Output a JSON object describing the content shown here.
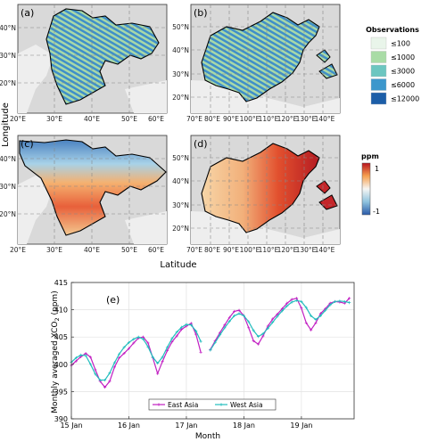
{
  "maps": {
    "ylabel": "Longitude",
    "xlabel": "Latitude",
    "panels": [
      {
        "id": "a",
        "label": "(a)",
        "region": "west",
        "mode": "obs"
      },
      {
        "id": "b",
        "label": "(b)",
        "region": "east",
        "mode": "obs"
      },
      {
        "id": "c",
        "label": "(c)",
        "region": "west",
        "mode": "ppm"
      },
      {
        "id": "d",
        "label": "(d)",
        "region": "east",
        "mode": "ppm"
      }
    ],
    "west_lat_ticks": [
      "40°N",
      "30°N",
      "20°N"
    ],
    "west_lon_ticks": [
      "20°E",
      "30°E",
      "40°E",
      "50°E",
      "60°E"
    ],
    "east_lat_ticks": [
      "50°N",
      "40°N",
      "30°N",
      "20°N"
    ],
    "east_lon_ticks": [
      "70°E",
      "80°E",
      "90°E",
      "100°E",
      "110°E",
      "120°E",
      "130°E",
      "140°E"
    ],
    "obs_legend": {
      "title": "Observations",
      "items": [
        {
          "label": "≤100",
          "color": "#e9f5ea"
        },
        {
          "label": "≤1000",
          "color": "#a9dca6"
        },
        {
          "label": "≤3000",
          "color": "#6cc6c0"
        },
        {
          "label": "≤6000",
          "color": "#3c97cc"
        },
        {
          "label": "≤12000",
          "color": "#1c5ea8"
        }
      ]
    },
    "ppm_bar": {
      "title": "ppm",
      "max_label": "1",
      "min_label": "-1",
      "range": [
        -1,
        1
      ]
    }
  },
  "chart_data": {
    "type": "line",
    "panel_label": "(e)",
    "title": "",
    "xlabel": "Month",
    "ylabel": "Monthly averaged XCO",
    "ylabel_sub": "2",
    "ylabel_unit": " (ppm)",
    "x_tick_labels": [
      "15 Jan",
      "16 Jan",
      "17 Jan",
      "18 Jan",
      "19 Jan"
    ],
    "x_tick_positions": [
      0,
      12,
      24,
      36,
      48
    ],
    "xlim": [
      0,
      59
    ],
    "ylim": [
      390,
      415
    ],
    "yticks": [
      390,
      395,
      400,
      405,
      410,
      415
    ],
    "grid": true,
    "legend_position": "bottom-center",
    "series": [
      {
        "name": "East Asia",
        "color": "#c21fc2",
        "marker": "plus",
        "segments": [
          {
            "start": 0,
            "values": [
              399.8,
              400.6,
              401.4,
              402.0,
              401.3,
              399.0,
              396.9,
              395.8,
              396.9,
              399.5,
              401.2,
              402.0,
              402.9,
              403.9,
              404.8,
              405.0,
              403.9,
              401.2,
              398.3,
              400.5,
              402.5,
              404.1,
              405.2,
              406.4,
              407.0,
              407.5,
              405.5,
              402.2
            ]
          },
          {
            "start": 29,
            "values": [
              402.7,
              404.3,
              405.8,
              407.2,
              408.6,
              409.7,
              409.9,
              408.9,
              406.7,
              404.3,
              403.7,
              405.2,
              407.0,
              408.3,
              409.2,
              410.2,
              411.2,
              411.9,
              412.1,
              410.3,
              407.6,
              406.3,
              407.6,
              409.3,
              410.2,
              411.2,
              411.5,
              411.4,
              411.2,
              412.1
            ]
          }
        ]
      },
      {
        "name": "West Asia",
        "color": "#22bdbd",
        "marker": "plus",
        "segments": [
          {
            "start": 0,
            "values": [
              400.4,
              401.2,
              401.7,
              401.6,
              400.0,
              398.2,
              397.1,
              397.1,
              398.4,
              400.3,
              401.9,
              403.1,
              404.0,
              404.6,
              405.0,
              404.6,
              403.2,
              401.3,
              400.2,
              401.3,
              403.1,
              404.7,
              405.9,
              406.8,
              407.3,
              407.2,
              406.1,
              404.2
            ]
          },
          {
            "start": 29,
            "values": [
              402.6,
              404.0,
              405.4,
              406.7,
              407.9,
              408.9,
              409.3,
              408.9,
              407.8,
              406.2,
              405.1,
              405.6,
              406.6,
              407.7,
              408.8,
              409.8,
              410.7,
              411.4,
              411.7,
              411.5,
              410.4,
              408.9,
              408.2,
              408.9,
              409.9,
              410.9,
              411.5,
              411.6,
              411.5,
              411.3
            ]
          }
        ]
      }
    ]
  }
}
